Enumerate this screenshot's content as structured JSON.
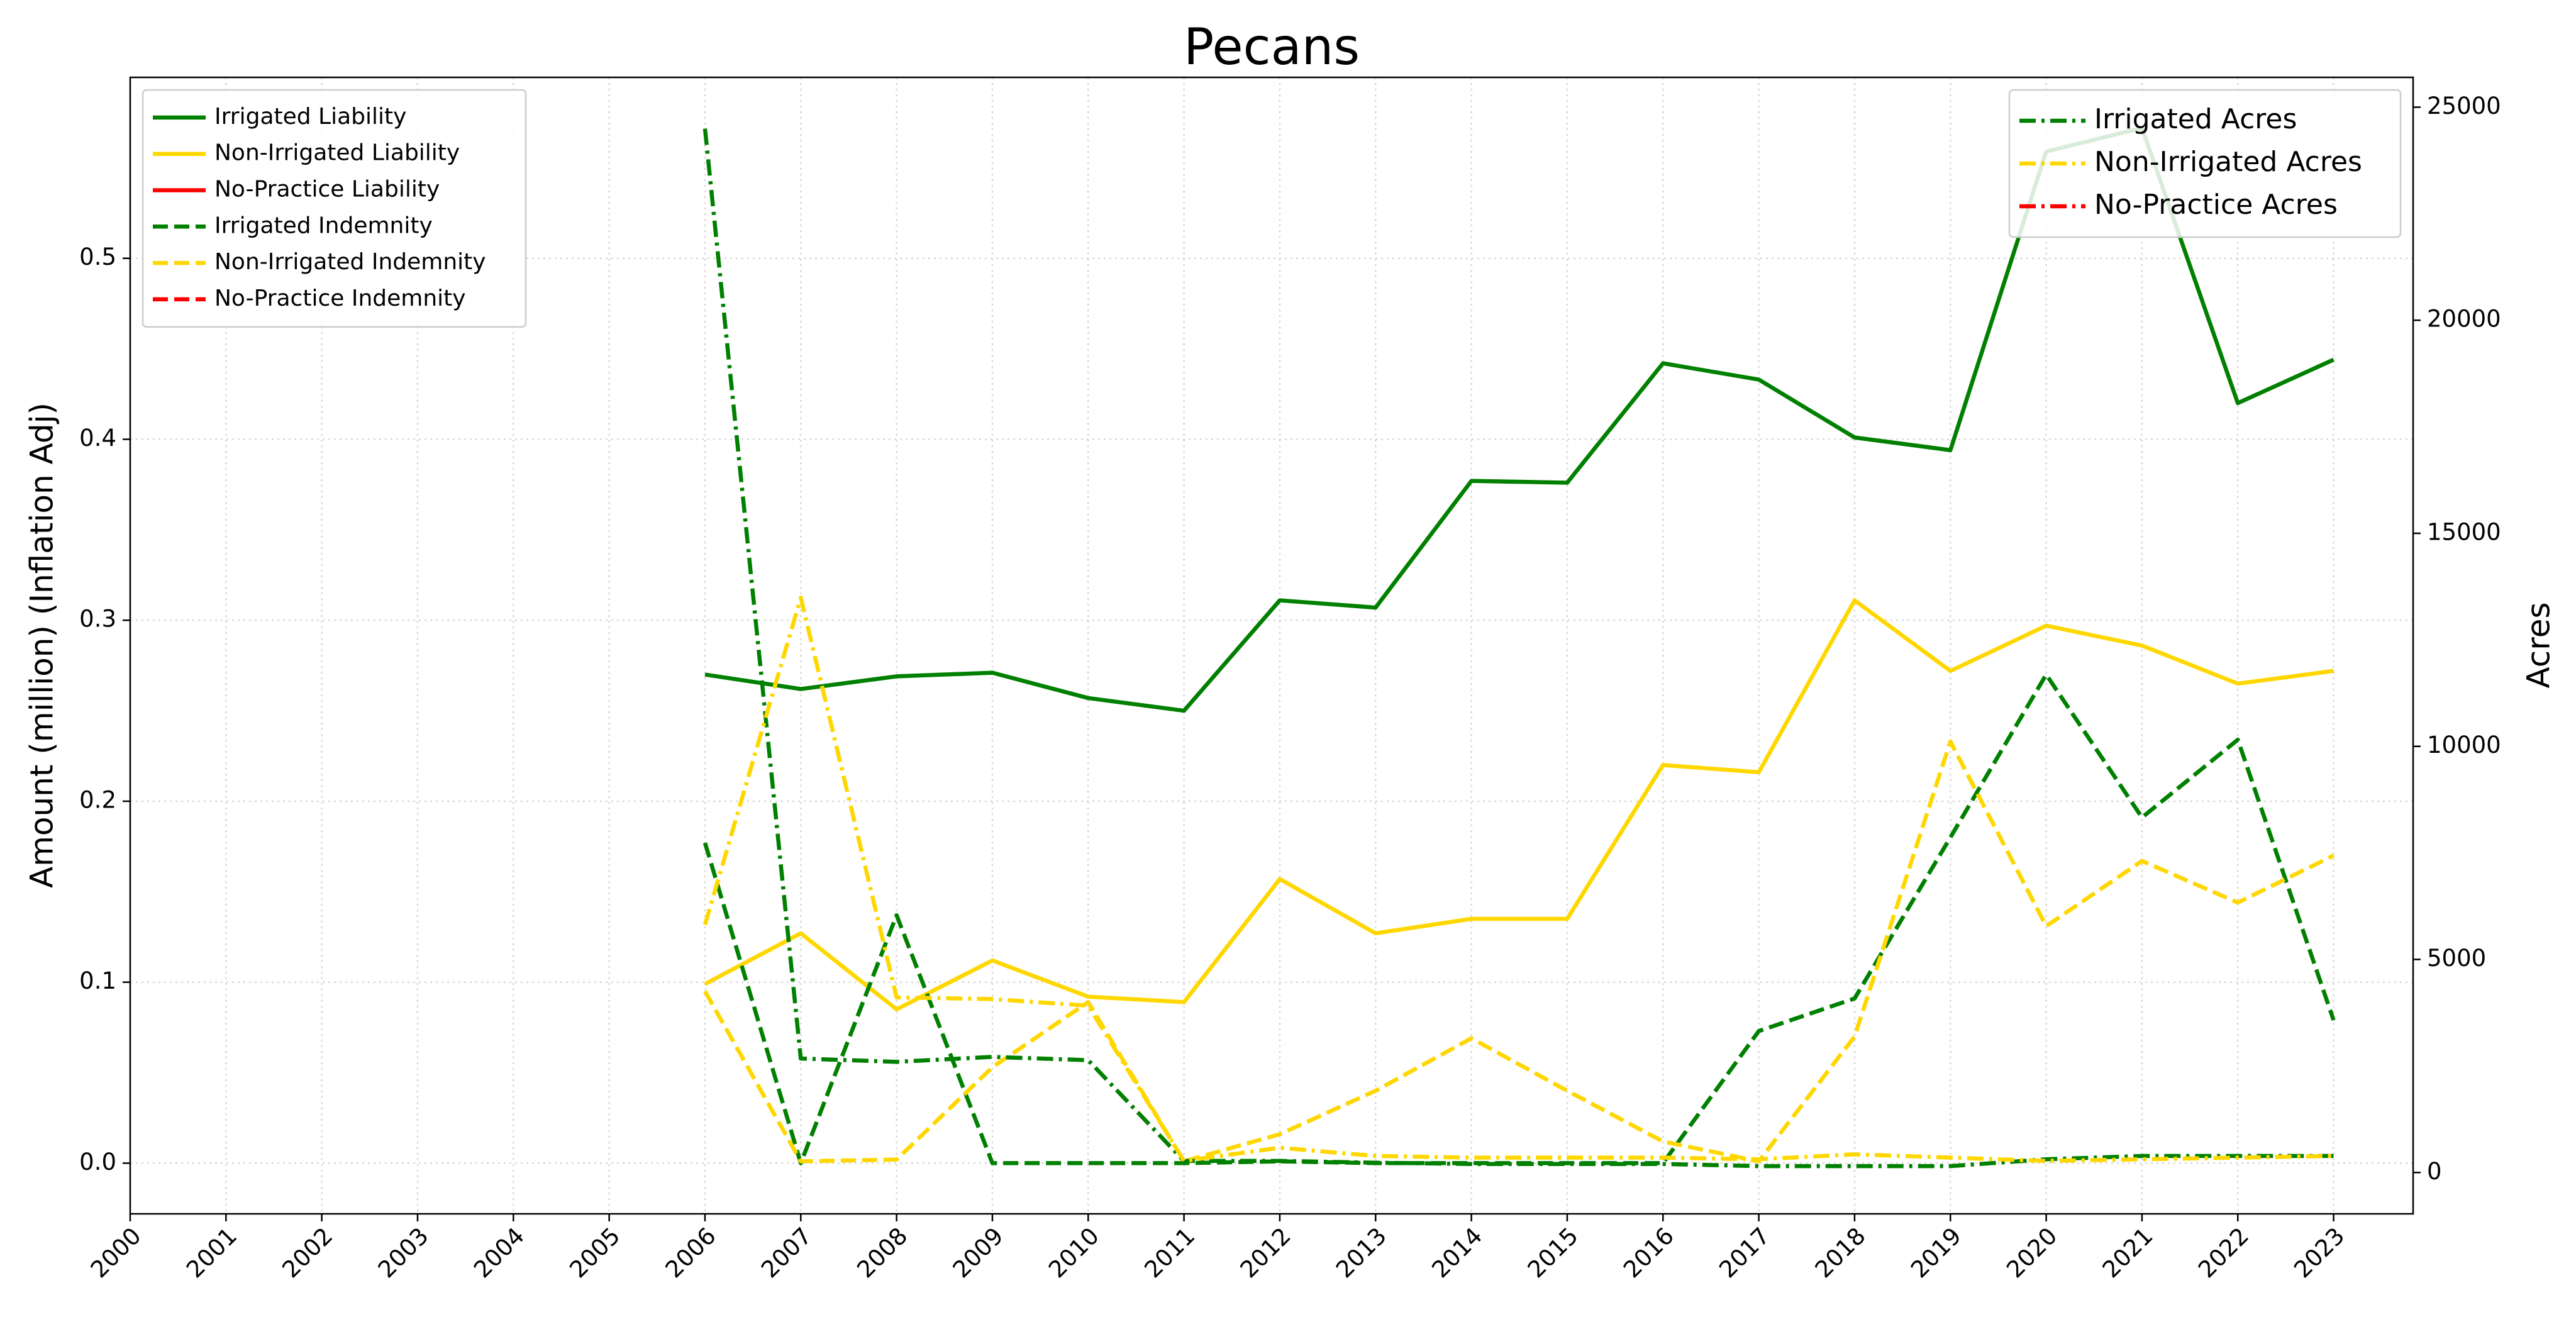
{
  "chart_data": {
    "type": "line",
    "title": "Pecans",
    "y_label": "Amount (million) (Inflation Adj)",
    "y2_label": "Acres",
    "x": [
      2006,
      2007,
      2008,
      2009,
      2010,
      2011,
      2012,
      2013,
      2014,
      2015,
      2016,
      2017,
      2018,
      2019,
      2020,
      2021,
      2022,
      2023
    ],
    "xlim": [
      2000,
      2023.83
    ],
    "xticks": [
      2000,
      2001,
      2002,
      2003,
      2004,
      2005,
      2006,
      2007,
      2008,
      2009,
      2010,
      2011,
      2012,
      2013,
      2014,
      2015,
      2016,
      2017,
      2018,
      2019,
      2020,
      2021,
      2022,
      2023
    ],
    "ylim": [
      -0.028,
      0.6
    ],
    "yticks": [
      {
        "value": 0,
        "label": "0.0"
      },
      0.1,
      0.2,
      0.3,
      0.4,
      0.5
    ],
    "y2lim": [
      -970,
      25700
    ],
    "y2ticks": [
      0,
      5000,
      10000,
      15000,
      20000,
      25000
    ],
    "grid": true,
    "legend": "upper left",
    "legend2": "upper right",
    "series": [
      {
        "name": "Irrigated Liability",
        "color": "#008000",
        "style": "solid",
        "values": [
          0.27,
          0.262,
          0.269,
          0.271,
          0.257,
          0.25,
          0.311,
          0.307,
          0.377,
          0.376,
          0.442,
          0.433,
          0.401,
          0.394,
          0.559,
          0.572,
          0.42,
          0.444
        ]
      },
      {
        "name": "Non-Irrigated Liability",
        "color": "#ffd700",
        "style": "solid",
        "values": [
          0.099,
          0.127,
          0.085,
          0.112,
          0.092,
          0.089,
          0.157,
          0.127,
          0.135,
          0.135,
          0.22,
          0.216,
          0.311,
          0.272,
          0.297,
          0.286,
          0.265,
          0.272
        ]
      },
      {
        "name": "No-Practice Liability",
        "color": "#ff0000",
        "style": "solid",
        "values": [
          null,
          null,
          null,
          null,
          null,
          null,
          null,
          null,
          null,
          null,
          null,
          null,
          null,
          null,
          null,
          null,
          null,
          null
        ]
      },
      {
        "name": "Irrigated Indemnity",
        "color": "#008000",
        "style": "dashed",
        "values": [
          0.177,
          0.0,
          0.137,
          0.0,
          0.0,
          0.0,
          0.001,
          0.0,
          0.0,
          0.0,
          0.0,
          0.073,
          0.091,
          0.18,
          0.27,
          0.191,
          0.234,
          0.079
        ]
      },
      {
        "name": "Non-Irrigated Indemnity",
        "color": "#ffd700",
        "style": "dashed",
        "values": [
          0.095,
          0.001,
          0.002,
          0.053,
          0.089,
          0.001,
          0.016,
          0.04,
          0.069,
          0.04,
          0.012,
          0.001,
          0.07,
          0.233,
          0.131,
          0.167,
          0.144,
          0.17
        ]
      },
      {
        "name": "No-Practice Indemnity",
        "color": "#ff0000",
        "style": "dashed",
        "values": [
          null,
          null,
          null,
          null,
          null,
          null,
          null,
          null,
          null,
          null,
          null,
          null,
          null,
          null,
          null,
          null,
          null,
          null
        ]
      },
      {
        "name": "Irrigated Acres",
        "color": "#008000",
        "style": "dashdot",
        "axis": "y2",
        "values": [
          24496,
          2674,
          2597,
          2713,
          2636,
          271,
          271,
          230,
          200,
          200,
          200,
          150,
          150,
          150,
          310,
          388,
          388,
          388
        ]
      },
      {
        "name": "Non-Irrigated Acres",
        "color": "#ffd700",
        "style": "dashdot",
        "axis": "y2",
        "values": [
          5814,
          13488,
          4109,
          4070,
          3915,
          271,
          581,
          388,
          349,
          349,
          349,
          310,
          426,
          349,
          271,
          310,
          349,
          388
        ]
      },
      {
        "name": "No-Practice Acres",
        "color": "#ff0000",
        "style": "dashdot",
        "axis": "y2",
        "values": [
          null,
          null,
          null,
          null,
          null,
          null,
          null,
          null,
          null,
          null,
          null,
          null,
          null,
          null,
          null,
          null,
          null,
          null
        ]
      }
    ]
  }
}
